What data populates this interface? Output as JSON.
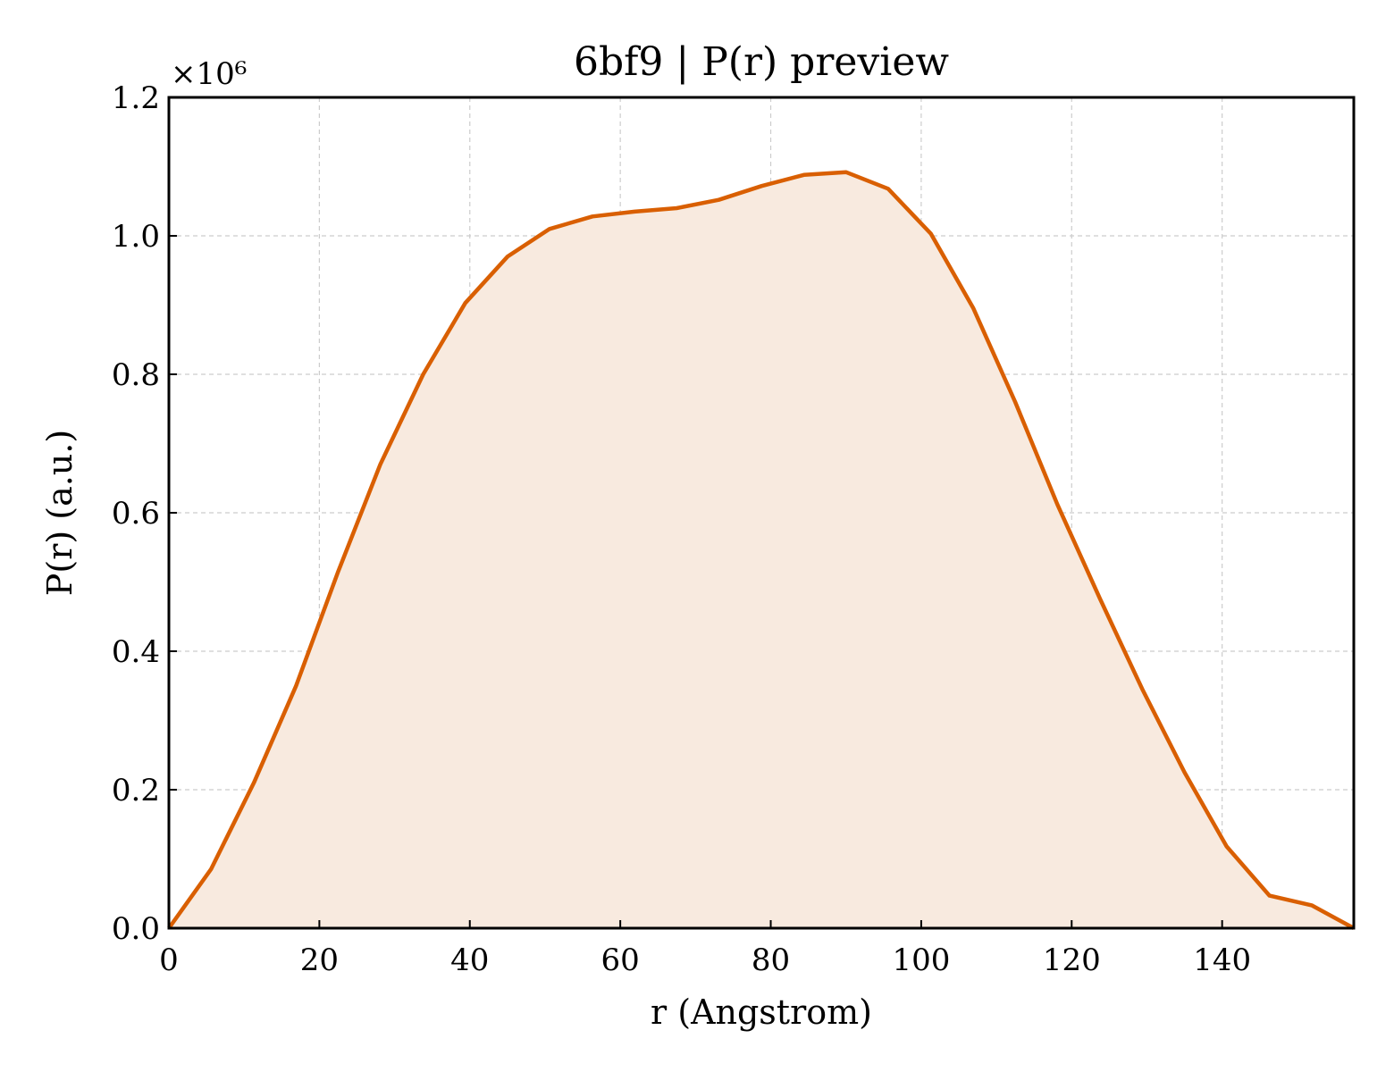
{
  "chart_data": {
    "type": "area",
    "title": "6bf9 | P(r) preview",
    "xlabel": "r (Angstrom)",
    "ylabel": "P(r) (a.u.)",
    "y_scale_label": "×10⁶",
    "y_scale_factor": 1000000,
    "xlim": [
      0,
      157.5
    ],
    "ylim": [
      0,
      1.2
    ],
    "x_ticks": [
      0,
      20,
      40,
      60,
      80,
      100,
      120,
      140
    ],
    "y_ticks": [
      0.0,
      0.2,
      0.4,
      0.6,
      0.8,
      1.0,
      1.2
    ],
    "x_tick_labels": [
      "0",
      "20",
      "40",
      "60",
      "80",
      "100",
      "120",
      "140"
    ],
    "y_tick_labels": [
      "0.0",
      "0.2",
      "0.4",
      "0.6",
      "0.8",
      "1.0",
      "1.2"
    ],
    "grid": true,
    "line_color": "#d95f02",
    "fill_color": "#f8eadf",
    "x": [
      0,
      5.6,
      11.3,
      16.9,
      22.5,
      28.1,
      33.8,
      39.4,
      45.0,
      50.6,
      56.3,
      61.9,
      67.5,
      73.1,
      78.8,
      84.4,
      90.0,
      95.6,
      101.3,
      106.9,
      112.5,
      118.1,
      123.8,
      129.4,
      135.0,
      140.6,
      146.3,
      151.9,
      157.5
    ],
    "y": [
      0.0,
      0.085,
      0.21,
      0.35,
      0.515,
      0.67,
      0.8,
      0.903,
      0.97,
      1.01,
      1.028,
      1.035,
      1.04,
      1.052,
      1.072,
      1.088,
      1.092,
      1.068,
      1.003,
      0.896,
      0.76,
      0.612,
      0.475,
      0.345,
      0.225,
      0.118,
      0.047,
      0.033,
      0.0
    ]
  }
}
